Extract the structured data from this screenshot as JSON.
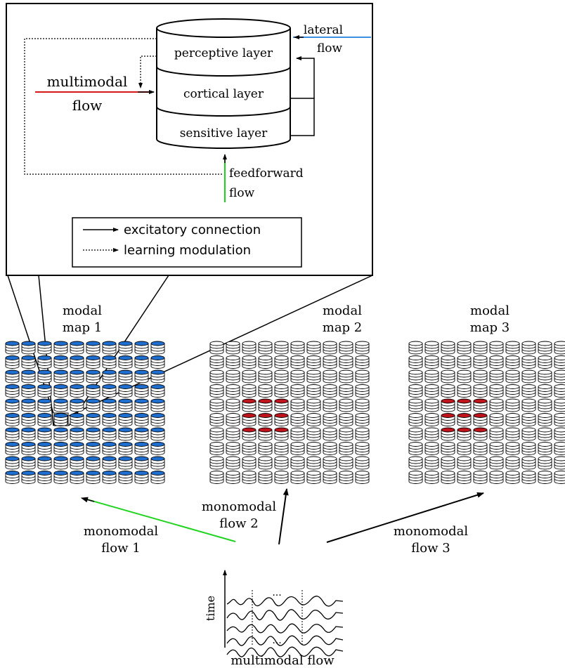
{
  "column_layers": {
    "perceptive": "perceptive layer",
    "cortical": "cortical layer",
    "sensitive": "sensitive layer"
  },
  "flows": {
    "lateral_1": "lateral",
    "lateral_2": "flow",
    "multimodal_1": "multimodal",
    "multimodal_2": "flow",
    "feedforward_1": "feedforward",
    "feedforward_2": "flow"
  },
  "legend": {
    "excitatory": "excitatory connection",
    "learning": "learning modulation"
  },
  "maps": [
    {
      "label_1": "modal",
      "label_2": "map 1",
      "style": "blue-filled",
      "active_rows": [],
      "active_cols": []
    },
    {
      "label_1": "modal",
      "label_2": "map 2",
      "style": "outline",
      "active_rows": [
        4,
        5,
        6
      ],
      "active_cols": [
        2,
        3,
        4
      ]
    },
    {
      "label_1": "modal",
      "label_2": "map 3",
      "style": "outline",
      "active_rows": [
        4,
        5,
        6
      ],
      "active_cols": [
        2,
        3,
        4
      ]
    }
  ],
  "monomodal": {
    "f1_a": "monomodal",
    "f1_b": "flow 1",
    "f2_a": "monomodal",
    "f2_b": "flow 2",
    "f3_a": "monomodal",
    "f3_b": "flow 3"
  },
  "signal": {
    "ellipsis": "...",
    "time_label": "time",
    "caption": "multimodal flow"
  },
  "colors": {
    "map1_fill": "#1f6fd1",
    "active_fill": "#c0141c",
    "multimodal_line": "#d61818",
    "lateral_line": "#3a8fe0",
    "feedforward_line": "#1ed41e",
    "monomodal1_line": "#1ed41e"
  }
}
